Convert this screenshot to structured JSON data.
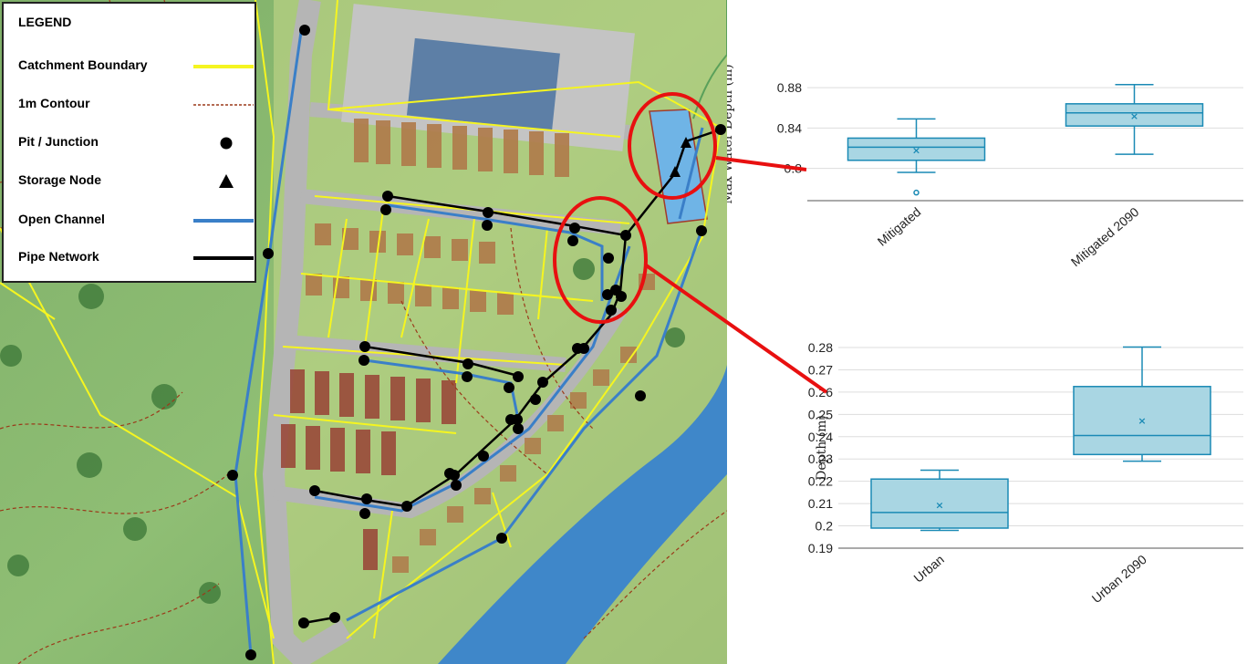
{
  "legend": {
    "title": "LEGEND",
    "items": [
      {
        "label": "Catchment Boundary",
        "symbol": "line",
        "color": "#f5f520",
        "dashed": false
      },
      {
        "label": "1m Contour",
        "symbol": "line",
        "color": "#9b3a1a",
        "dashed": true
      },
      {
        "label": "Pit / Junction",
        "symbol": "dot",
        "color": "#000000"
      },
      {
        "label": "Storage Node",
        "symbol": "triangle",
        "color": "#000000"
      },
      {
        "label": "Open Channel",
        "symbol": "line",
        "color": "#3a7fc8",
        "dashed": false
      },
      {
        "label": "Pipe Network",
        "symbol": "line",
        "color": "#000000",
        "dashed": false
      }
    ]
  },
  "colors": {
    "box_fill": "#a9d6e3",
    "box_stroke": "#1a8ab5",
    "callout": "#e81010",
    "grid": "#dddddd"
  },
  "chart_data": [
    {
      "type": "box",
      "title": "",
      "xlabel": "",
      "ylabel": "Max Water Depth (m)",
      "ylim": [
        0.768,
        0.9
      ],
      "yticks": [
        0.8,
        0.84,
        0.88
      ],
      "ytick_labels": [
        "0.8",
        "0.84",
        "0.88"
      ],
      "categories": [
        "Mitigated",
        "Mitigated 2090"
      ],
      "series": [
        {
          "category": "Mitigated",
          "min": 0.796,
          "q1": 0.808,
          "median": 0.821,
          "q3": 0.83,
          "max": 0.849,
          "mean": 0.818,
          "outliers": [
            0.776
          ]
        },
        {
          "category": "Mitigated 2090",
          "min": 0.814,
          "q1": 0.842,
          "median": 0.855,
          "q3": 0.864,
          "max": 0.883,
          "mean": 0.852,
          "outliers": []
        }
      ]
    },
    {
      "type": "box",
      "title": "",
      "xlabel": "",
      "ylabel": "Depth (m)",
      "ylim": [
        0.19,
        0.28
      ],
      "yticks": [
        0.19,
        0.2,
        0.21,
        0.22,
        0.23,
        0.24,
        0.25,
        0.26,
        0.27,
        0.28
      ],
      "ytick_labels": [
        "0.19",
        "0.2",
        "0.21",
        "0.22",
        "0.23",
        "0.24",
        "0.25",
        "0.26",
        "0.27",
        "0.28"
      ],
      "categories": [
        "Urban",
        "Urban 2090"
      ],
      "series": [
        {
          "category": "Urban",
          "min": 0.198,
          "q1": 0.199,
          "median": 0.206,
          "q3": 0.221,
          "max": 0.225,
          "mean": 0.2095,
          "outliers": []
        },
        {
          "category": "Urban 2090",
          "min": 0.229,
          "q1": 0.232,
          "median": 0.2405,
          "q3": 0.2625,
          "max": 0.2802,
          "mean": 0.2472,
          "outliers": []
        }
      ]
    }
  ]
}
